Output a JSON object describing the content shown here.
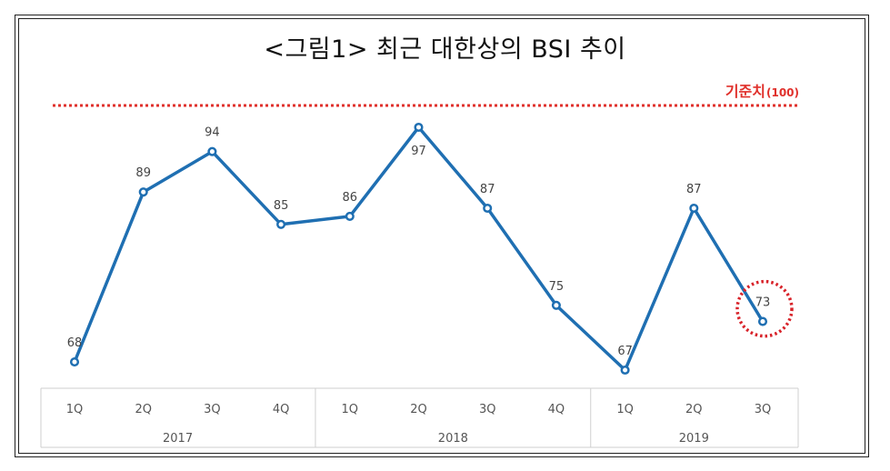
{
  "title": "<그림1> 최근 대한상의 BSI 추이",
  "reference": {
    "label": "기준치",
    "value_label": "(100)",
    "value": 100,
    "color": "#e0302b"
  },
  "chart_data": {
    "type": "line",
    "title": "<그림1> 최근 대한상의 BSI 추이",
    "xlabel": "",
    "ylabel": "",
    "line_color": "#1f6fb2",
    "categories": [
      "1Q",
      "2Q",
      "3Q",
      "4Q",
      "1Q",
      "2Q",
      "3Q",
      "4Q",
      "1Q",
      "2Q",
      "3Q"
    ],
    "groups": [
      {
        "label": "2017",
        "count": 4
      },
      {
        "label": "2018",
        "count": 4
      },
      {
        "label": "2019",
        "count": 3
      }
    ],
    "series": [
      {
        "values": [
          68,
          89,
          94,
          85,
          86,
          97,
          87,
          75,
          67,
          87,
          73
        ]
      }
    ],
    "highlight_index": 10,
    "grid": false
  }
}
